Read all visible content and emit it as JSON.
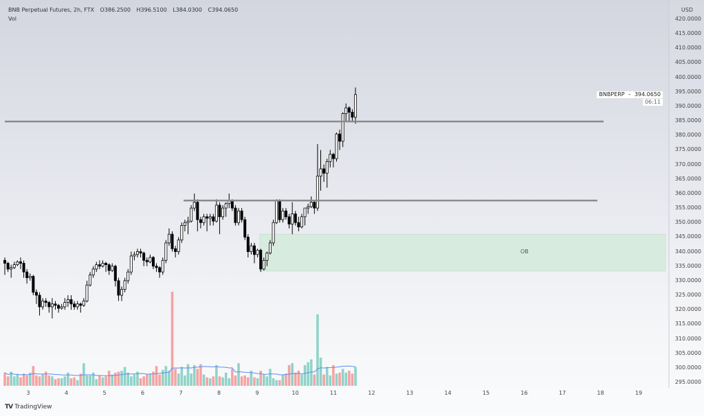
{
  "header": {
    "symbol": "BNB Perpetual Futures, 2h, FTX",
    "open": "O386.2500",
    "high": "H396.5100",
    "low": "L384.0300",
    "close": "C394.0650",
    "volume_label": "Vol"
  },
  "price_axis": {
    "currency": "USD",
    "labels": [
      "420.0000",
      "415.0000",
      "410.0000",
      "405.0000",
      "400.0000",
      "395.0000",
      "390.0000",
      "385.0000",
      "380.0000",
      "375.0000",
      "370.0000",
      "365.0000",
      "360.0000",
      "355.0000",
      "350.0000",
      "345.0000",
      "340.0000",
      "335.0000",
      "330.0000",
      "325.0000",
      "320.0000",
      "315.0000",
      "310.0000",
      "305.0000",
      "300.0000",
      "295.0000"
    ]
  },
  "time_axis": {
    "labels": [
      "3",
      "4",
      "5",
      "6",
      "7",
      "8",
      "9",
      "10",
      "11",
      "12",
      "13",
      "14",
      "15",
      "16",
      "17",
      "18",
      "19"
    ]
  },
  "last_price": {
    "ticker": "BNBPERP",
    "price": "394.0650",
    "countdown": "06:11"
  },
  "annotations": {
    "ob_label": "OB",
    "resistance_levels": [
      384.8,
      357.6
    ],
    "ob_zone": [
      333.3,
      346.0
    ]
  },
  "branding": {
    "name": "TradingView"
  },
  "colors": {
    "up_volume": "#8fd3c8",
    "down_volume": "#f5a3a3",
    "candle_up": "#ffffff",
    "candle_down": "#000000",
    "ma_line": "#5b8def",
    "ob_fill": "#d8ebdf",
    "level_line": "#8a8a8f"
  },
  "chart_data": {
    "type": "candlestick",
    "interval": "2h",
    "ylim": [
      295,
      420
    ],
    "candles": [
      [
        337,
        338,
        332,
        336
      ],
      [
        336,
        336.5,
        333,
        334
      ],
      [
        334,
        335.5,
        331,
        334.5
      ],
      [
        334.5,
        336.5,
        334,
        335.5
      ],
      [
        335.5,
        337,
        335,
        336.5
      ],
      [
        336.5,
        338,
        334,
        336
      ],
      [
        336,
        337,
        331,
        333
      ],
      [
        333,
        334,
        329,
        331
      ],
      [
        331,
        332.5,
        330,
        331.5
      ],
      [
        331.5,
        332,
        325,
        326
      ],
      [
        326,
        327,
        322,
        325
      ],
      [
        325,
        326,
        318,
        321
      ],
      [
        321,
        324,
        320,
        323
      ],
      [
        323,
        324,
        321,
        322.5
      ],
      [
        322.5,
        323,
        319,
        321
      ],
      [
        321,
        324,
        317,
        322
      ],
      [
        322,
        323,
        320,
        321.5
      ],
      [
        321.5,
        322,
        319,
        320.5
      ],
      [
        320.5,
        322,
        320,
        321
      ],
      [
        321,
        324,
        320,
        322.5
      ],
      [
        322.5,
        325,
        321,
        323.5
      ],
      [
        323.5,
        325,
        320,
        322
      ],
      [
        322,
        323,
        320,
        321
      ],
      [
        321,
        323,
        320,
        322
      ],
      [
        322,
        322.5,
        319,
        321.5
      ],
      [
        321.5,
        324,
        321,
        323
      ],
      [
        323,
        330,
        322.5,
        328.5
      ],
      [
        328.5,
        333,
        328,
        332
      ],
      [
        332,
        335,
        331,
        334
      ],
      [
        334,
        336.5,
        333,
        335.5
      ],
      [
        335.5,
        337,
        334,
        335
      ],
      [
        335,
        337,
        334.5,
        336
      ],
      [
        336,
        336.5,
        333,
        335.5
      ],
      [
        335.5,
        336,
        332,
        333.5
      ],
      [
        333.5,
        336,
        333,
        335
      ],
      [
        335,
        335.5,
        328,
        330
      ],
      [
        330,
        331,
        323,
        325
      ],
      [
        325,
        328,
        323,
        327
      ],
      [
        327,
        331,
        326,
        330
      ],
      [
        330,
        334,
        329,
        333
      ],
      [
        333,
        340,
        332,
        338.5
      ],
      [
        338.5,
        340,
        337,
        339
      ],
      [
        339,
        341,
        338,
        340
      ],
      [
        340,
        341,
        338,
        339.5
      ],
      [
        339.5,
        340,
        335,
        337
      ],
      [
        337,
        338,
        335,
        336.5
      ],
      [
        336.5,
        339,
        336,
        338
      ],
      [
        338,
        338.5,
        334,
        335
      ],
      [
        335,
        336,
        333,
        334.5
      ],
      [
        334.5,
        335,
        331,
        333
      ],
      [
        333,
        338,
        332,
        337
      ],
      [
        337,
        344,
        336,
        343
      ],
      [
        343,
        348,
        342,
        346
      ],
      [
        346,
        347,
        340,
        341
      ],
      [
        341,
        342,
        338,
        340
      ],
      [
        340,
        345,
        339,
        344
      ],
      [
        344,
        350,
        343,
        349
      ],
      [
        349,
        351,
        347,
        350
      ],
      [
        350,
        352,
        346,
        350.5
      ],
      [
        350.5,
        356,
        350,
        355
      ],
      [
        355,
        360,
        354,
        357
      ],
      [
        357,
        358,
        347,
        351
      ],
      [
        351,
        352,
        348,
        350
      ],
      [
        350,
        353,
        349,
        352
      ],
      [
        352,
        353,
        347,
        351.5
      ],
      [
        351.5,
        353,
        349,
        352
      ],
      [
        352,
        353,
        349,
        350.5
      ],
      [
        350.5,
        358,
        350,
        356
      ],
      [
        356,
        357,
        346,
        352
      ],
      [
        352,
        356,
        351,
        355
      ],
      [
        355,
        357,
        352,
        356.5
      ],
      [
        356.5,
        360,
        355,
        357.5
      ],
      [
        357.5,
        358,
        354,
        355
      ],
      [
        355,
        356,
        349,
        350
      ],
      [
        350,
        355,
        349,
        354
      ],
      [
        354,
        355,
        350,
        351
      ],
      [
        351,
        352,
        344,
        345
      ],
      [
        345,
        346,
        338,
        340
      ],
      [
        340,
        343,
        339,
        342
      ],
      [
        342,
        343,
        336,
        339
      ],
      [
        339,
        341,
        338,
        340.5
      ],
      [
        340.5,
        341,
        333,
        334
      ],
      [
        334,
        338,
        333.5,
        337
      ],
      [
        337,
        340,
        335,
        339.5
      ],
      [
        339.5,
        344,
        339,
        343
      ],
      [
        343,
        351,
        342,
        350
      ],
      [
        350,
        358,
        349.5,
        357.5
      ],
      [
        357.5,
        358,
        350,
        351
      ],
      [
        351,
        355,
        350,
        354
      ],
      [
        354,
        355,
        351,
        352
      ],
      [
        352,
        353,
        348,
        349.5
      ],
      [
        349.5,
        357,
        346,
        353
      ],
      [
        353,
        354,
        349,
        350
      ],
      [
        350,
        352,
        347,
        348.5
      ],
      [
        348.5,
        353,
        348,
        352
      ],
      [
        352,
        355,
        349,
        355
      ],
      [
        355,
        356.5,
        353,
        355.5
      ],
      [
        355.5,
        359,
        355,
        357
      ],
      [
        357,
        357.5,
        353,
        355
      ],
      [
        355,
        377,
        354,
        366
      ],
      [
        366,
        375,
        361,
        368.5
      ],
      [
        368.5,
        370,
        364,
        367
      ],
      [
        367,
        372,
        362,
        371
      ],
      [
        371,
        375,
        369,
        373.5
      ],
      [
        373.5,
        374,
        369,
        372
      ],
      [
        372,
        381,
        371,
        380.5
      ],
      [
        380.5,
        382,
        375,
        378
      ],
      [
        378,
        388,
        376,
        387.5
      ],
      [
        387.5,
        391,
        385,
        389.5
      ],
      [
        389.5,
        390,
        385,
        388
      ],
      [
        388,
        389,
        385,
        386.25
      ],
      [
        386.25,
        396.51,
        384.03,
        394.065
      ]
    ],
    "volume": [
      14,
      10,
      15,
      10,
      12,
      9,
      13,
      11,
      14,
      21,
      11,
      10,
      12,
      15,
      11,
      10,
      7,
      8,
      8,
      10,
      14,
      8,
      9,
      6,
      13,
      24,
      11,
      11,
      14,
      7,
      11,
      9,
      10,
      16,
      12,
      14,
      15,
      16,
      20,
      14,
      10,
      12,
      15,
      8,
      10,
      12,
      13,
      15,
      21,
      12,
      17,
      21,
      16,
      100,
      18,
      13,
      20,
      11,
      23,
      13,
      22,
      18,
      23,
      12,
      9,
      8,
      10,
      22,
      10,
      9,
      14,
      8,
      18,
      11,
      24,
      10,
      11,
      9,
      16,
      9,
      8,
      16,
      12,
      10,
      18,
      8,
      6,
      6,
      12,
      13,
      22,
      24,
      14,
      16,
      12,
      22,
      25,
      28,
      12,
      76,
      30,
      12,
      20,
      11,
      22,
      13,
      14,
      18,
      14,
      16,
      13,
      20
    ]
  }
}
